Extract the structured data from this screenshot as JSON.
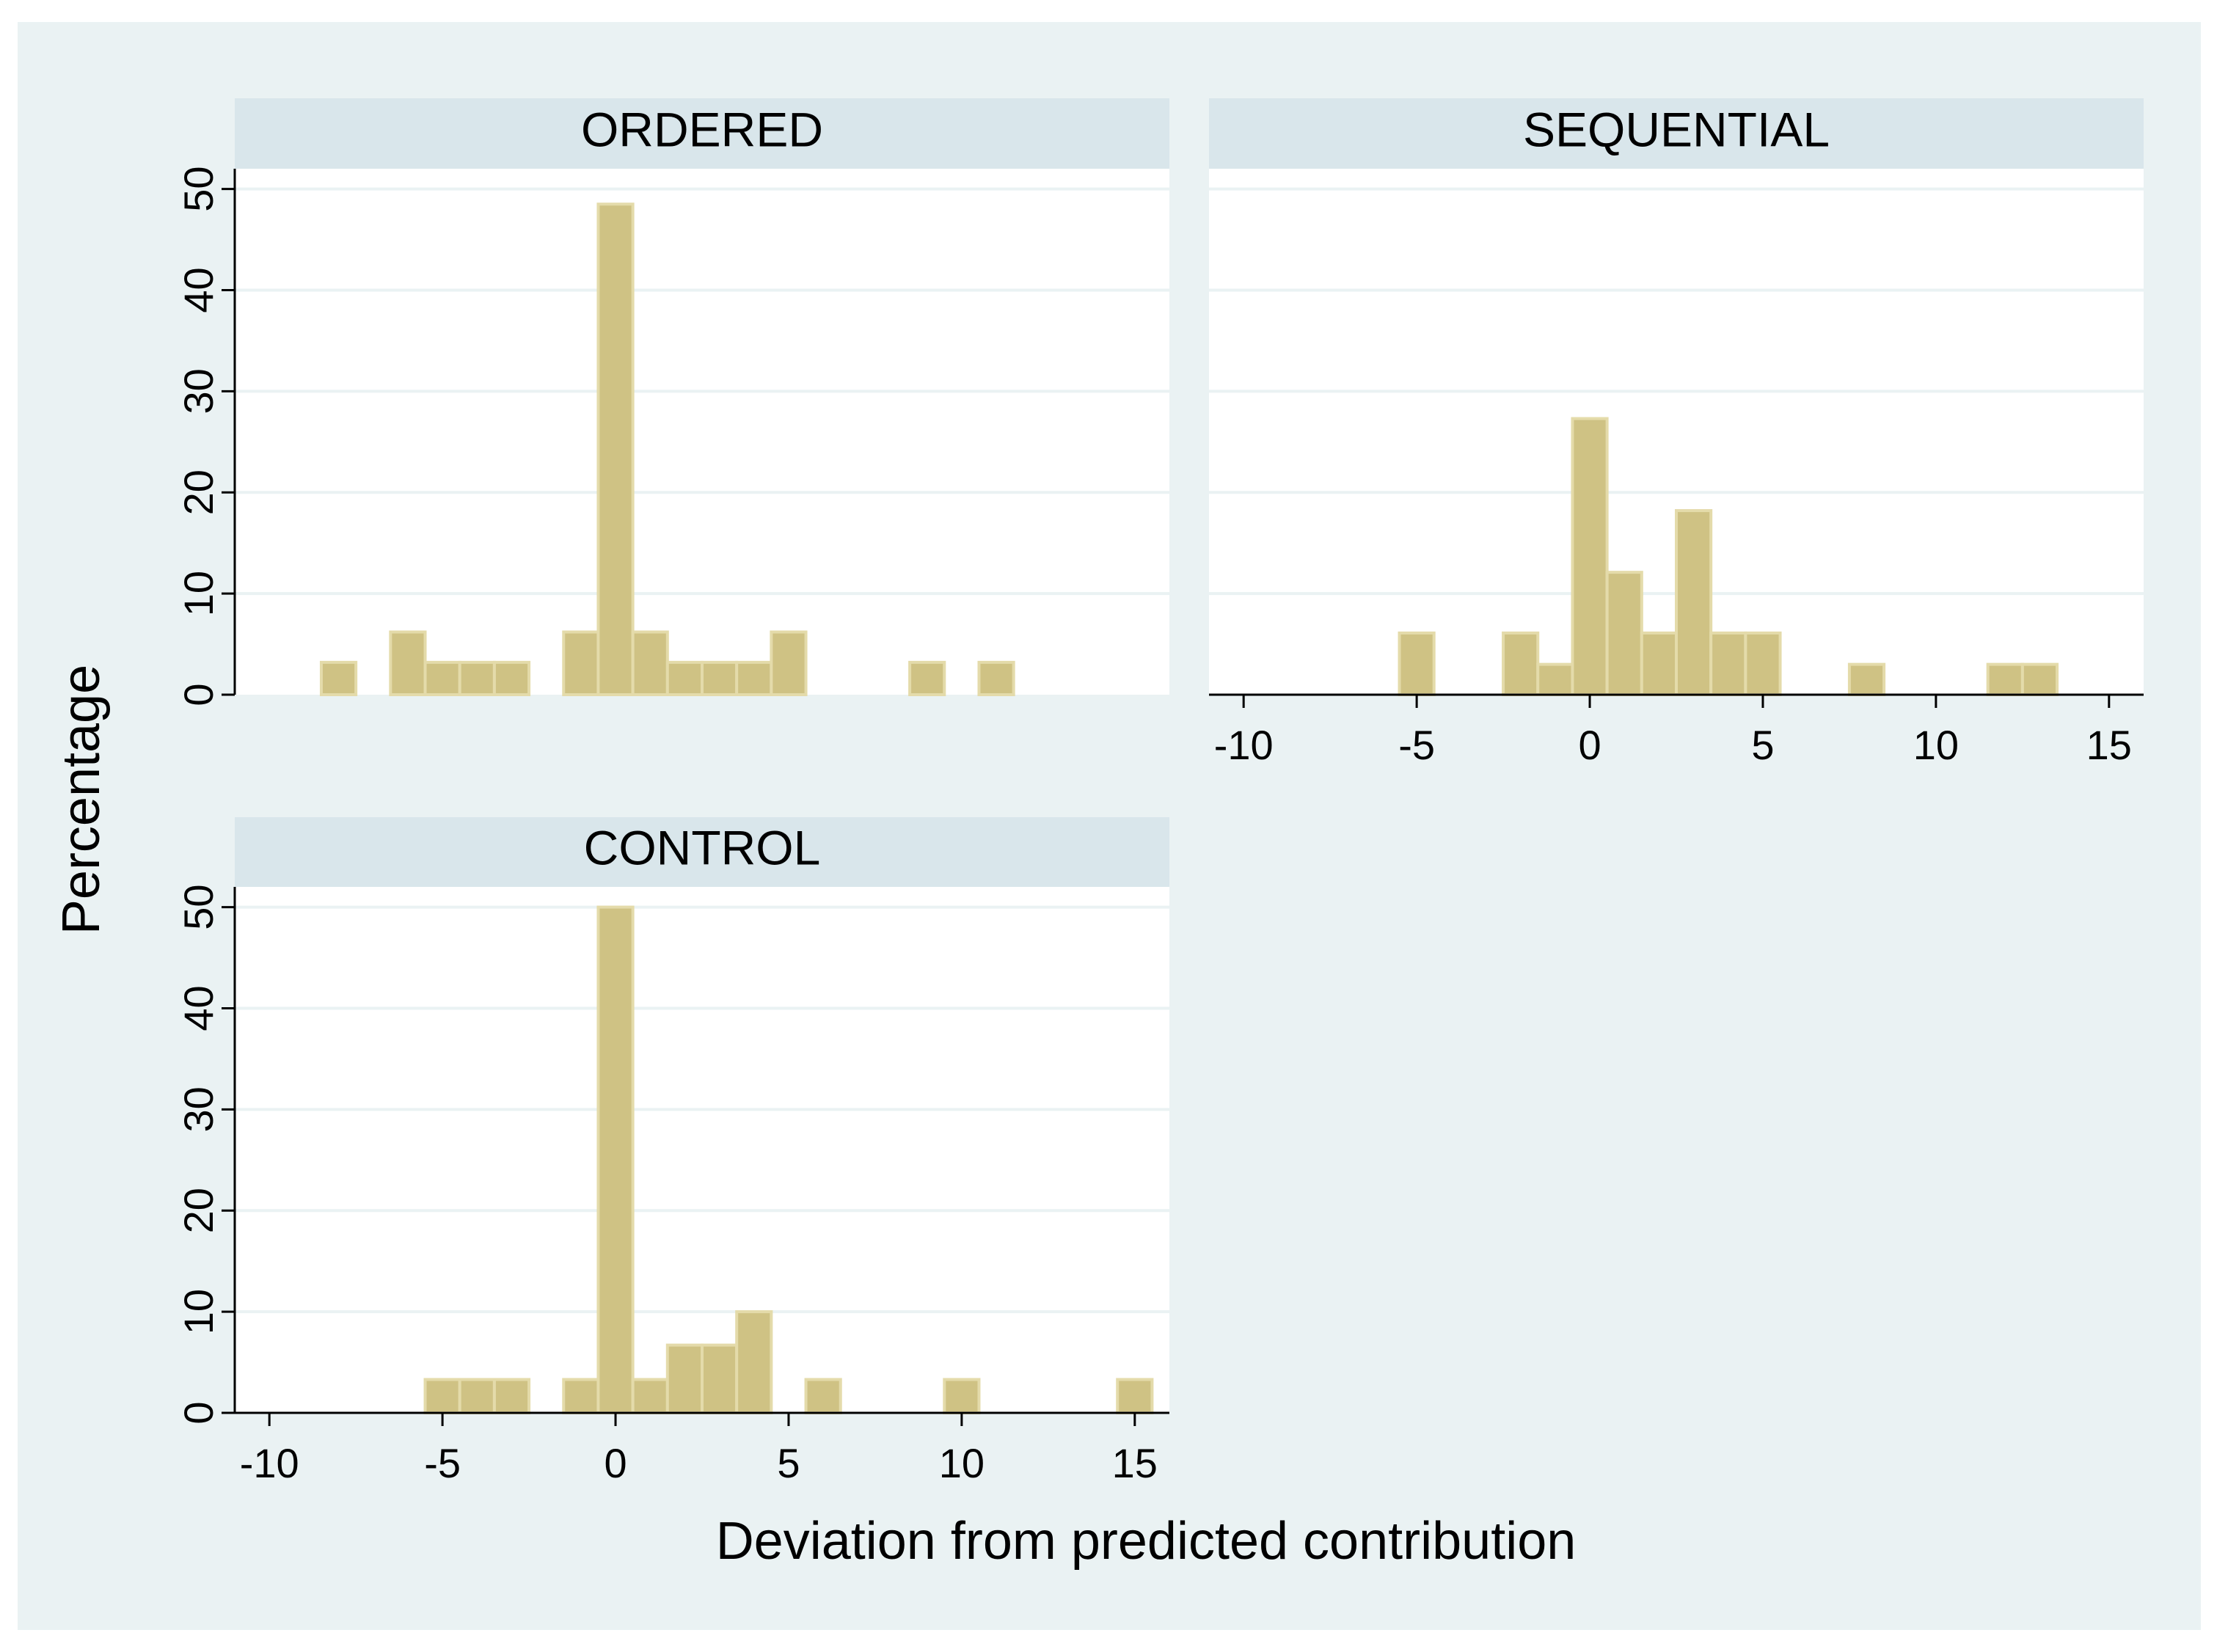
{
  "colors": {
    "outer_background": "#eaf2f3",
    "plot_background": "#ffffff",
    "strip_background": "#d9e6eb",
    "gridline": "#eaf2f3",
    "bar_fill": "#cfc284",
    "bar_edge": "#e4dbaa",
    "axis": "#000000"
  },
  "chart_data": {
    "type": "bar",
    "subtype": "histogram-facets",
    "ylabel": "Percentage",
    "xlabel": "Deviation from predicted contribution",
    "xlim": [
      -11,
      16
    ],
    "ylim": [
      0,
      52
    ],
    "xticks": [
      -10,
      -5,
      0,
      5,
      10,
      15
    ],
    "yticks": [
      0,
      10,
      20,
      30,
      40,
      50
    ],
    "bin_width": 1,
    "grid": true,
    "panels": [
      {
        "title": "ORDERED",
        "bars": [
          {
            "x": -8,
            "value": 3.2
          },
          {
            "x": -6,
            "value": 6.2
          },
          {
            "x": -5,
            "value": 3.2
          },
          {
            "x": -4,
            "value": 3.2
          },
          {
            "x": -3,
            "value": 3.2
          },
          {
            "x": -1,
            "value": 6.2
          },
          {
            "x": 0,
            "value": 48.5
          },
          {
            "x": 1,
            "value": 6.2
          },
          {
            "x": 2,
            "value": 3.2
          },
          {
            "x": 3,
            "value": 3.2
          },
          {
            "x": 4,
            "value": 3.2
          },
          {
            "x": 5,
            "value": 6.2
          },
          {
            "x": 9,
            "value": 3.2
          },
          {
            "x": 11,
            "value": 3.2
          }
        ]
      },
      {
        "title": "SEQUENTIAL",
        "bars": [
          {
            "x": -5,
            "value": 6.1
          },
          {
            "x": -2,
            "value": 6.1
          },
          {
            "x": -1,
            "value": 3.0
          },
          {
            "x": 0,
            "value": 27.3
          },
          {
            "x": 1,
            "value": 12.1
          },
          {
            "x": 2,
            "value": 6.1
          },
          {
            "x": 3,
            "value": 18.2
          },
          {
            "x": 4,
            "value": 6.1
          },
          {
            "x": 5,
            "value": 6.1
          },
          {
            "x": 8,
            "value": 3.0
          },
          {
            "x": 12,
            "value": 3.0
          },
          {
            "x": 13,
            "value": 3.0
          }
        ]
      },
      {
        "title": "CONTROL",
        "bars": [
          {
            "x": -5,
            "value": 3.3
          },
          {
            "x": -4,
            "value": 3.3
          },
          {
            "x": -3,
            "value": 3.3
          },
          {
            "x": -1,
            "value": 3.3
          },
          {
            "x": 0,
            "value": 50.0
          },
          {
            "x": 1,
            "value": 3.3
          },
          {
            "x": 2,
            "value": 6.7
          },
          {
            "x": 3,
            "value": 6.7
          },
          {
            "x": 4,
            "value": 10.0
          },
          {
            "x": 6,
            "value": 3.3
          },
          {
            "x": 10,
            "value": 3.3
          },
          {
            "x": 15,
            "value": 3.3
          }
        ]
      }
    ]
  }
}
